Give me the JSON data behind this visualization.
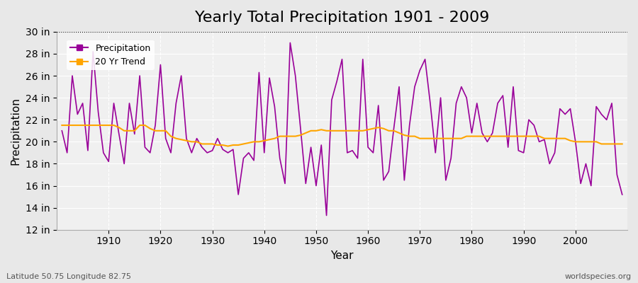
{
  "title": "Yearly Total Precipitation 1901 - 2009",
  "xlabel": "Year",
  "ylabel": "Precipitation",
  "lat_lon_label": "Latitude 50.75 Longitude 82.75",
  "source_label": "worldspecies.org",
  "years": [
    1901,
    1902,
    1903,
    1904,
    1905,
    1906,
    1907,
    1908,
    1909,
    1910,
    1911,
    1912,
    1913,
    1914,
    1915,
    1916,
    1917,
    1918,
    1919,
    1920,
    1921,
    1922,
    1923,
    1924,
    1925,
    1926,
    1927,
    1928,
    1929,
    1930,
    1931,
    1932,
    1933,
    1934,
    1935,
    1936,
    1937,
    1938,
    1939,
    1940,
    1941,
    1942,
    1943,
    1944,
    1945,
    1946,
    1947,
    1948,
    1949,
    1950,
    1951,
    1952,
    1953,
    1954,
    1955,
    1956,
    1957,
    1958,
    1959,
    1960,
    1961,
    1962,
    1963,
    1964,
    1965,
    1966,
    1967,
    1968,
    1969,
    1970,
    1971,
    1972,
    1973,
    1974,
    1975,
    1976,
    1977,
    1978,
    1979,
    1980,
    1981,
    1982,
    1983,
    1984,
    1985,
    1986,
    1987,
    1988,
    1989,
    1990,
    1991,
    1992,
    1993,
    1994,
    1995,
    1996,
    1997,
    1998,
    1999,
    2000,
    2001,
    2002,
    2003,
    2004,
    2005,
    2006,
    2007,
    2008,
    2009
  ],
  "precip": [
    21.0,
    19.0,
    26.0,
    22.5,
    23.5,
    19.2,
    28.2,
    22.7,
    19.0,
    18.2,
    23.5,
    20.7,
    18.0,
    23.5,
    20.7,
    26.0,
    19.5,
    19.0,
    21.5,
    27.0,
    20.3,
    19.0,
    23.5,
    26.0,
    20.3,
    19.0,
    20.3,
    19.5,
    19.0,
    19.2,
    20.3,
    19.3,
    19.0,
    19.3,
    15.2,
    18.5,
    19.0,
    18.3,
    26.3,
    19.0,
    25.8,
    23.2,
    18.5,
    16.2,
    29.0,
    26.0,
    21.2,
    16.2,
    19.5,
    16.0,
    19.7,
    13.3,
    23.8,
    25.5,
    27.5,
    19.0,
    19.2,
    18.5,
    27.5,
    19.5,
    19.0,
    23.3,
    16.5,
    17.3,
    21.3,
    25.0,
    16.5,
    21.5,
    25.0,
    26.5,
    27.5,
    23.5,
    19.0,
    24.0,
    16.5,
    18.5,
    23.5,
    25.0,
    24.0,
    20.8,
    23.5,
    20.8,
    20.0,
    20.8,
    23.5,
    24.2,
    19.5,
    25.0,
    19.2,
    19.0,
    22.0,
    21.5,
    20.0,
    20.2,
    18.0,
    19.0,
    23.0,
    22.5,
    23.0,
    20.0,
    16.2,
    18.0,
    16.0,
    23.2,
    22.5,
    22.0,
    23.5,
    17.0,
    15.2
  ],
  "trend": [
    21.5,
    21.5,
    21.5,
    21.5,
    21.5,
    21.5,
    21.5,
    21.5,
    21.5,
    21.5,
    21.5,
    21.3,
    21.0,
    21.0,
    21.0,
    21.5,
    21.5,
    21.2,
    21.0,
    21.0,
    21.0,
    20.5,
    20.3,
    20.2,
    20.1,
    20.0,
    20.0,
    19.8,
    19.8,
    19.8,
    19.7,
    19.7,
    19.6,
    19.7,
    19.7,
    19.8,
    19.9,
    20.0,
    20.0,
    20.1,
    20.2,
    20.3,
    20.5,
    20.5,
    20.5,
    20.5,
    20.6,
    20.8,
    21.0,
    21.0,
    21.1,
    21.0,
    21.0,
    21.0,
    21.0,
    21.0,
    21.0,
    21.0,
    21.0,
    21.1,
    21.2,
    21.3,
    21.2,
    21.0,
    21.0,
    20.8,
    20.6,
    20.5,
    20.5,
    20.3,
    20.3,
    20.3,
    20.3,
    20.3,
    20.3,
    20.3,
    20.3,
    20.3,
    20.5,
    20.5,
    20.5,
    20.5,
    20.5,
    20.5,
    20.5,
    20.5,
    20.5,
    20.5,
    20.5,
    20.5,
    20.5,
    20.5,
    20.5,
    20.3,
    20.3,
    20.3,
    20.3,
    20.3,
    20.1,
    20.0,
    20.0,
    20.0,
    20.0,
    20.0,
    19.8,
    19.8,
    19.8,
    19.8,
    19.8
  ],
  "precip_color": "#990099",
  "trend_color": "#FFA500",
  "bg_color": "#e8e8e8",
  "plot_bg_color": "#f0f0f0",
  "ylim": [
    12,
    30
  ],
  "yticks": [
    12,
    14,
    16,
    18,
    20,
    22,
    24,
    26,
    28,
    30
  ],
  "xlim": [
    1901,
    2009
  ],
  "xticks": [
    1910,
    1920,
    1930,
    1940,
    1950,
    1960,
    1970,
    1980,
    1990,
    2000
  ],
  "title_fontsize": 16,
  "axis_label_fontsize": 11,
  "tick_fontsize": 10
}
